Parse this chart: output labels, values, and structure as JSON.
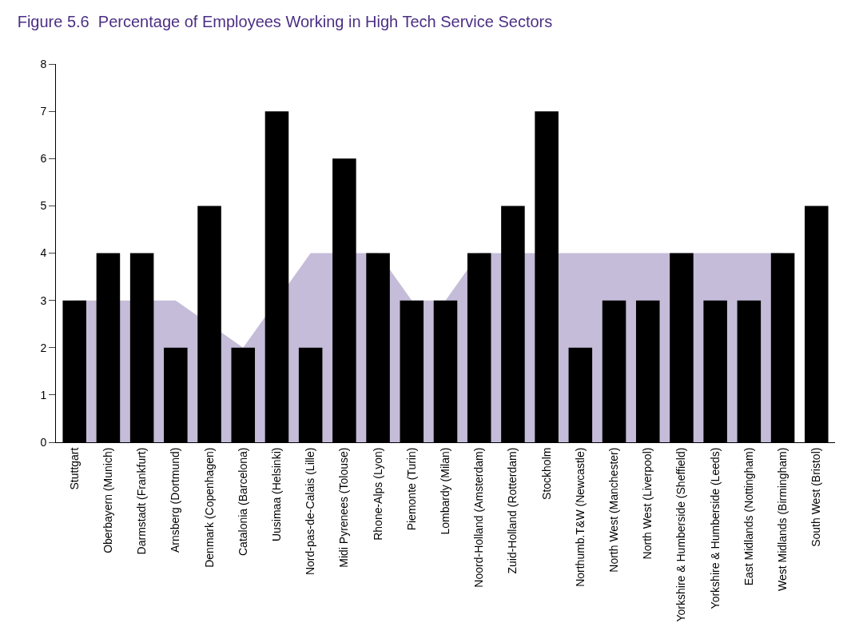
{
  "chart_data": {
    "type": "bar",
    "title": "Figure 5.6  Percentage of Employees Working in High Tech Service Sectors",
    "categories": [
      "Stuttgart",
      "Oberbayern (Munich)",
      "Darmstadt (Frankfurt)",
      "Arnsberg (Dortmund)",
      "Denmark (Copenhagen)",
      "Catalonia (Barcelona)",
      "Uusimaa (Helsinki)",
      "Nord-pas-de-Calais (Lille)",
      "Midi Pyrenees (Tolouse)",
      "Rhone-Alps (Lyon)",
      "Piemonte (Turin)",
      "Lombardy (Milan)",
      "Noord-Holland (Amsterdam)",
      "Zuid-Holland (Rotterdam)",
      "Stockholm",
      "Northumb.T&W (Newcastle)",
      "North West (Manchester)",
      "North West (Liverpool)",
      "Yorkshire & Humberside (Sheffield)",
      "Yorkshire & Humberside (Leeds)",
      "East Midlands (Nottingham)",
      "West Midlands (Birmingham)",
      "South West (Bristol)"
    ],
    "series": [
      {
        "type": "area",
        "color": "#c5bcd9",
        "values": [
          3,
          null,
          null,
          3,
          null,
          2,
          null,
          4,
          null,
          4,
          3,
          3,
          4,
          null,
          null,
          4,
          4,
          4,
          4,
          4,
          4,
          4,
          null
        ]
      },
      {
        "color": "#000000",
        "values": [
          3,
          4,
          4,
          2,
          5,
          2,
          7,
          2,
          6,
          4,
          3,
          3,
          4,
          5,
          7,
          2,
          3,
          3,
          4,
          3,
          3,
          4,
          5
        ]
      }
    ],
    "ylim": [
      0,
      8
    ],
    "yticks": [
      0,
      1,
      2,
      3,
      4,
      5,
      6,
      7,
      8
    ]
  }
}
